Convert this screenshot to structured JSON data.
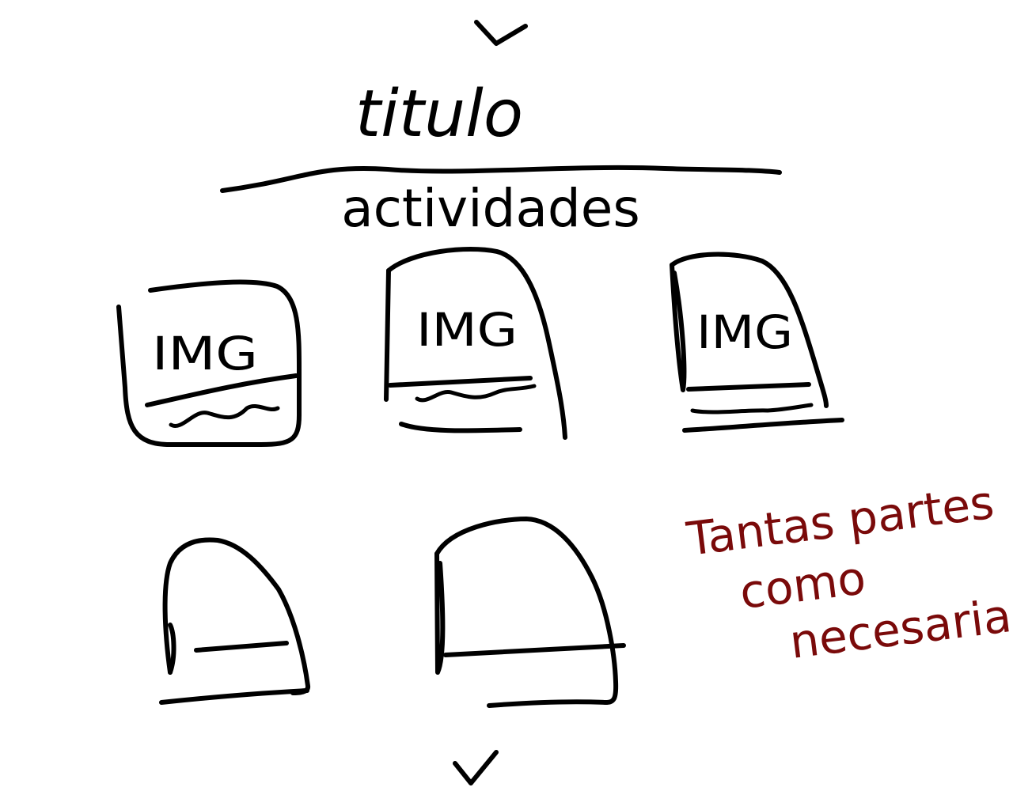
{
  "title": "titulo",
  "subtitle": "actividades",
  "cards": [
    {
      "label": "IMG",
      "icon": "image-placeholder-icon"
    },
    {
      "label": "IMG",
      "icon": "image-placeholder-icon"
    },
    {
      "label": "IMG",
      "icon": "image-placeholder-icon"
    },
    {
      "label": "",
      "icon": ""
    },
    {
      "label": "",
      "icon": ""
    }
  ],
  "note": {
    "lines": [
      "Tantas partes",
      "como",
      "necesarias"
    ],
    "color": "#7a0a0a"
  },
  "ink_color": "#000000",
  "icons": {
    "top": "chevron-down-icon",
    "bottom": "chevron-down-icon"
  }
}
